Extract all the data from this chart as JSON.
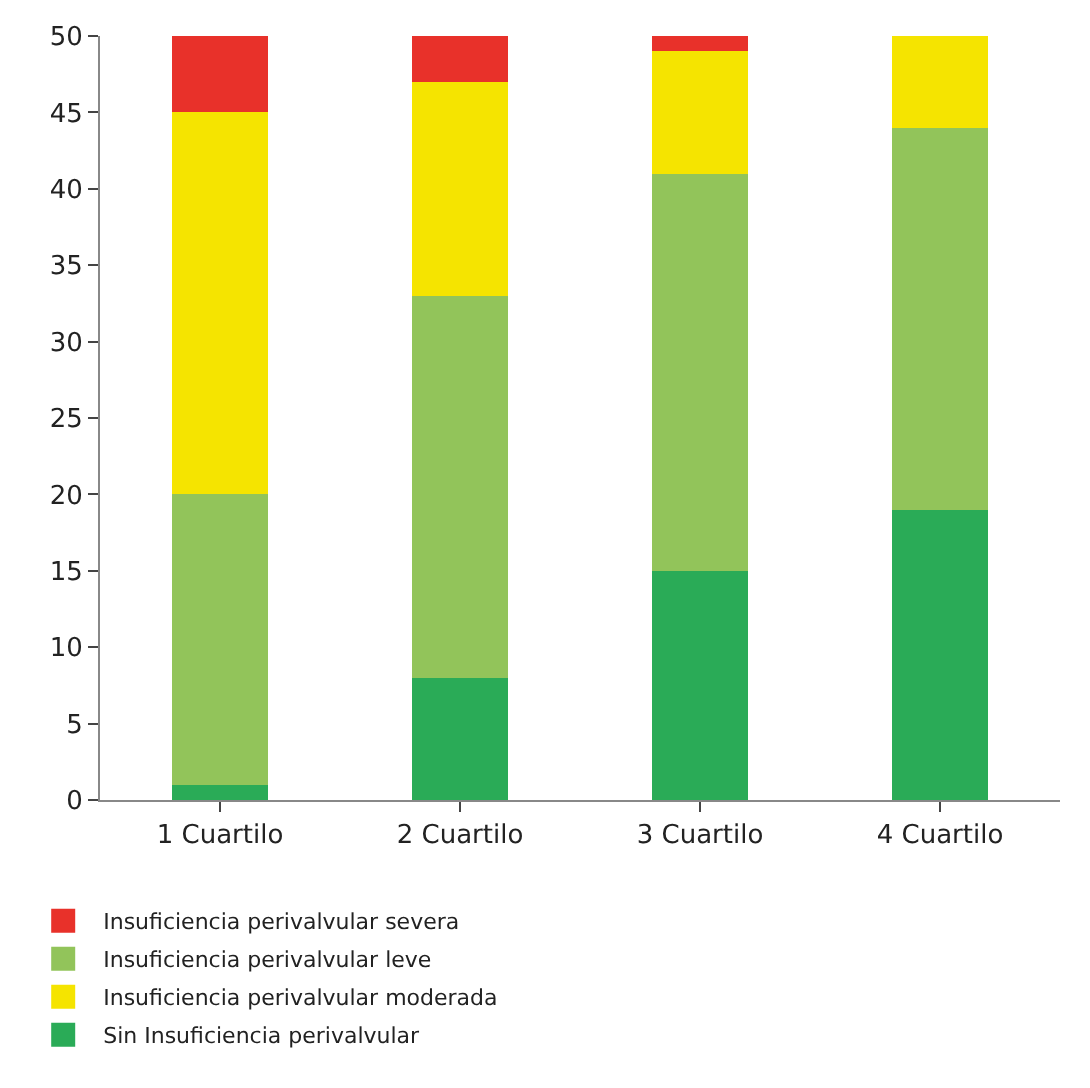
{
  "chart_data": {
    "type": "bar",
    "stacked": true,
    "categories": [
      "1 Cuartilo",
      "2 Cuartilo",
      "3 Cuartilo",
      "4 Cuartilo"
    ],
    "series": [
      {
        "name": "Sin Insuficiencia perivalvular",
        "color": "#2aab57",
        "values": [
          1,
          8,
          15,
          19
        ]
      },
      {
        "name": "Insuficiencia perivalvular leve",
        "color": "#92c45a",
        "values": [
          19,
          25,
          26,
          25
        ]
      },
      {
        "name": "Insuficiencia perivalvular moderada",
        "color": "#f5e400",
        "values": [
          25,
          14,
          8,
          6
        ]
      },
      {
        "name": "Insuficiencia perivalvular severa",
        "color": "#e8312a",
        "values": [
          5,
          3,
          1,
          0
        ]
      }
    ],
    "ylim": [
      0,
      50
    ],
    "yticks": [
      0,
      5,
      10,
      15,
      20,
      25,
      30,
      35,
      40,
      45,
      50
    ],
    "grid": false,
    "legend": "bottom"
  }
}
